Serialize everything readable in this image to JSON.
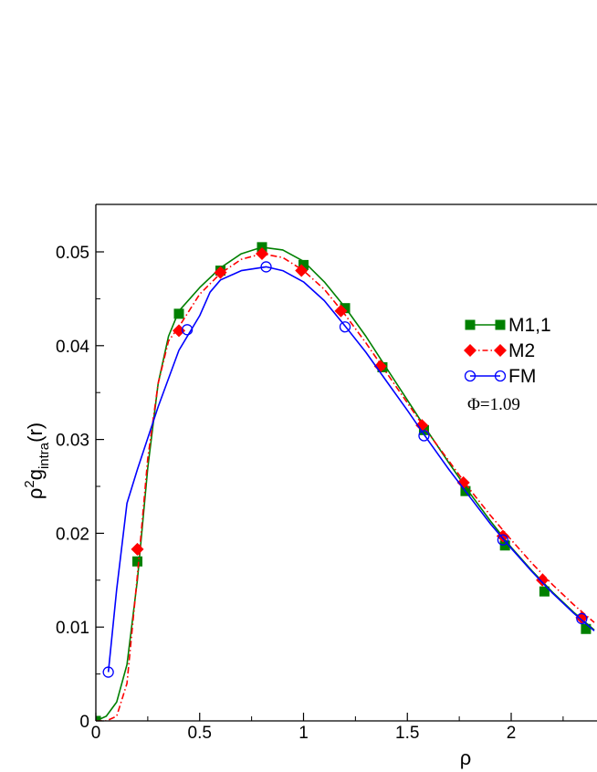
{
  "chart_data": {
    "type": "line",
    "xlabel": "ρ",
    "ylabel": "ρ",
    "ylabel_sup": "2",
    "ylabel_g": "g",
    "ylabel_sub": "intra",
    "ylabel_tail": "(r)",
    "xlim": [
      0,
      2.4
    ],
    "ylim": [
      0,
      0.055
    ],
    "x_ticks": [
      "0",
      "0.5",
      "1",
      "1.5",
      "2"
    ],
    "y_ticks": [
      "0",
      "0.01",
      "0.02",
      "0.03",
      "0.04",
      "0.05"
    ],
    "grid": false,
    "legend_position": "right",
    "annotation": "Φ=1.09",
    "series": [
      {
        "name": "M1,1",
        "color": "#008000",
        "line_style": "solid",
        "marker": "square",
        "curve": [
          [
            0,
            0
          ],
          [
            0.05,
            0.0005
          ],
          [
            0.1,
            0.002
          ],
          [
            0.15,
            0.006
          ],
          [
            0.2,
            0.015
          ],
          [
            0.25,
            0.027
          ],
          [
            0.3,
            0.036
          ],
          [
            0.35,
            0.041
          ],
          [
            0.4,
            0.0437
          ],
          [
            0.5,
            0.0462
          ],
          [
            0.6,
            0.0483
          ],
          [
            0.7,
            0.0498
          ],
          [
            0.8,
            0.0505
          ],
          [
            0.9,
            0.0502
          ],
          [
            1.0,
            0.049
          ],
          [
            1.1,
            0.0468
          ],
          [
            1.2,
            0.0441
          ],
          [
            1.3,
            0.041
          ],
          [
            1.4,
            0.0376
          ],
          [
            1.5,
            0.0342
          ],
          [
            1.6,
            0.0308
          ],
          [
            1.7,
            0.0275
          ],
          [
            1.8,
            0.0243
          ],
          [
            1.9,
            0.0213
          ],
          [
            2.0,
            0.0185
          ],
          [
            2.1,
            0.016
          ],
          [
            2.2,
            0.0137
          ],
          [
            2.3,
            0.0116
          ],
          [
            2.4,
            0.0097
          ]
        ],
        "markers": [
          [
            0,
            0
          ],
          [
            0.2,
            0.017
          ],
          [
            0.4,
            0.0434
          ],
          [
            0.6,
            0.048
          ],
          [
            0.8,
            0.0505
          ],
          [
            1.0,
            0.0486
          ],
          [
            1.2,
            0.044
          ],
          [
            1.38,
            0.0377
          ],
          [
            1.58,
            0.031
          ],
          [
            1.78,
            0.0245
          ],
          [
            1.97,
            0.0187
          ],
          [
            2.16,
            0.0138
          ],
          [
            2.36,
            0.0098
          ]
        ]
      },
      {
        "name": "M2",
        "color": "#ff0000",
        "line_style": "dash-dot",
        "marker": "diamond",
        "curve": [
          [
            0,
            0
          ],
          [
            0.05,
            0
          ],
          [
            0.1,
            0.0005
          ],
          [
            0.15,
            0.004
          ],
          [
            0.2,
            0.0155
          ],
          [
            0.25,
            0.028
          ],
          [
            0.3,
            0.036
          ],
          [
            0.35,
            0.0405
          ],
          [
            0.4,
            0.042
          ],
          [
            0.5,
            0.0455
          ],
          [
            0.6,
            0.0477
          ],
          [
            0.7,
            0.0492
          ],
          [
            0.8,
            0.0498
          ],
          [
            0.9,
            0.0494
          ],
          [
            1.0,
            0.048
          ],
          [
            1.1,
            0.046
          ],
          [
            1.2,
            0.0433
          ],
          [
            1.3,
            0.0403
          ],
          [
            1.4,
            0.0371
          ],
          [
            1.5,
            0.0339
          ],
          [
            1.6,
            0.0307
          ],
          [
            1.7,
            0.0277
          ],
          [
            1.8,
            0.0247
          ],
          [
            1.9,
            0.0219
          ],
          [
            2.0,
            0.0193
          ],
          [
            2.1,
            0.0168
          ],
          [
            2.2,
            0.0145
          ],
          [
            2.3,
            0.0124
          ],
          [
            2.4,
            0.0105
          ]
        ],
        "markers": [
          [
            0.2,
            0.0183
          ],
          [
            0.4,
            0.0416
          ],
          [
            0.6,
            0.0478
          ],
          [
            0.8,
            0.0498
          ],
          [
            0.99,
            0.048
          ],
          [
            1.18,
            0.0437
          ],
          [
            1.37,
            0.0378
          ],
          [
            1.57,
            0.0315
          ],
          [
            1.77,
            0.0254
          ],
          [
            1.96,
            0.0197
          ],
          [
            2.15,
            0.015
          ],
          [
            2.34,
            0.011
          ]
        ]
      },
      {
        "name": "FM",
        "color": "#0000ff",
        "line_style": "solid",
        "marker": "circle",
        "curve": [
          [
            0.06,
            0.0052
          ],
          [
            0.1,
            0.014
          ],
          [
            0.15,
            0.0232
          ],
          [
            0.2,
            0.0268
          ],
          [
            0.3,
            0.0335
          ],
          [
            0.4,
            0.0395
          ],
          [
            0.5,
            0.0432
          ],
          [
            0.55,
            0.0457
          ],
          [
            0.6,
            0.047
          ],
          [
            0.7,
            0.048
          ],
          [
            0.82,
            0.0484
          ],
          [
            0.9,
            0.048
          ],
          [
            1.0,
            0.0468
          ],
          [
            1.1,
            0.0448
          ],
          [
            1.2,
            0.0421
          ],
          [
            1.3,
            0.0393
          ],
          [
            1.4,
            0.0362
          ],
          [
            1.5,
            0.0331
          ],
          [
            1.6,
            0.0299
          ],
          [
            1.7,
            0.0268
          ],
          [
            1.8,
            0.0239
          ],
          [
            1.9,
            0.021
          ],
          [
            2.0,
            0.0184
          ],
          [
            2.1,
            0.0159
          ],
          [
            2.2,
            0.0136
          ],
          [
            2.3,
            0.0115
          ],
          [
            2.4,
            0.0096
          ]
        ],
        "markers": [
          [
            0.06,
            0.0052
          ],
          [
            0.44,
            0.0417
          ],
          [
            0.82,
            0.0484
          ],
          [
            1.2,
            0.042
          ],
          [
            1.58,
            0.0304
          ],
          [
            1.96,
            0.0193
          ],
          [
            2.34,
            0.0109
          ]
        ]
      }
    ]
  }
}
